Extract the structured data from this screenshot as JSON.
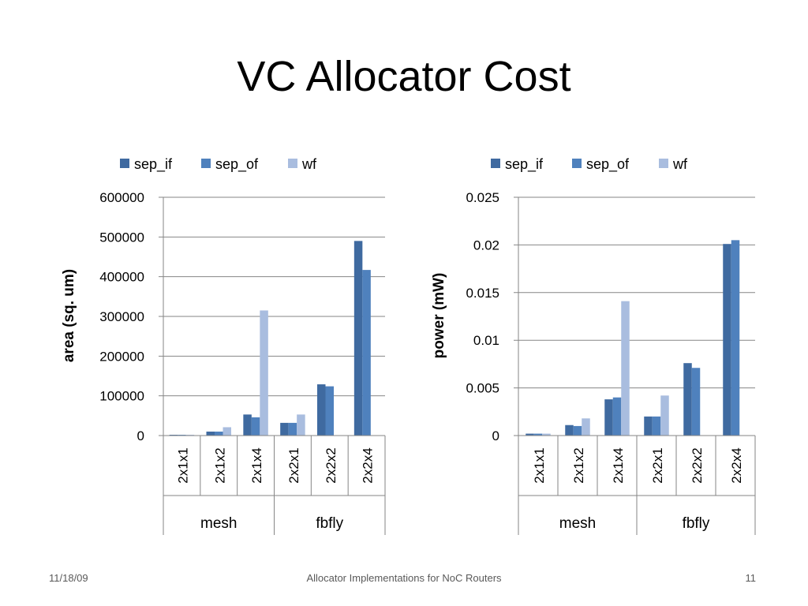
{
  "slide": {
    "title": "VC Allocator Cost",
    "footer_date": "11/18/09",
    "footer_center": "Allocator Implementations for NoC Routers",
    "page_number": "11"
  },
  "colors": {
    "sep_if": "#3f6aa0",
    "sep_of": "#4f81bd",
    "wf": "#a9bddf",
    "grid": "#868686",
    "axis": "#868686"
  },
  "chart_data": [
    {
      "type": "bar",
      "title": "",
      "xlabel": "",
      "ylabel": "area (sq. um)",
      "ylim": [
        0,
        600000
      ],
      "yticks": [
        "600000",
        "500000",
        "400000",
        "300000",
        "200000",
        "100000",
        "0"
      ],
      "legend_position": "top",
      "categories": [
        "2x1x1",
        "2x1x2",
        "2x1x4",
        "2x2x1",
        "2x2x2",
        "2x2x4"
      ],
      "groups": [
        {
          "label": "mesh",
          "span": 3
        },
        {
          "label": "fbfly",
          "span": 3
        }
      ],
      "series": [
        {
          "name": "sep_if",
          "values": [
            2000,
            10000,
            53000,
            32000,
            129000,
            490000
          ]
        },
        {
          "name": "sep_of",
          "values": [
            2000,
            10000,
            46000,
            32000,
            124000,
            417000
          ]
        },
        {
          "name": "wf",
          "values": [
            2000,
            21000,
            315000,
            53000,
            0,
            0
          ]
        }
      ],
      "grid": true
    },
    {
      "type": "bar",
      "title": "",
      "xlabel": "",
      "ylabel": "power (mW)",
      "ylim": [
        0,
        0.025
      ],
      "yticks": [
        "0.025",
        "0.02",
        "0.015",
        "0.01",
        "0.005",
        "0"
      ],
      "legend_position": "top",
      "categories": [
        "2x1x1",
        "2x1x2",
        "2x1x4",
        "2x2x1",
        "2x2x2",
        "2x2x4"
      ],
      "groups": [
        {
          "label": "mesh",
          "span": 3
        },
        {
          "label": "fbfly",
          "span": 3
        }
      ],
      "series": [
        {
          "name": "sep_if",
          "values": [
            0.0002,
            0.0011,
            0.0038,
            0.002,
            0.0076,
            0.0201
          ]
        },
        {
          "name": "sep_of",
          "values": [
            0.0002,
            0.001,
            0.004,
            0.002,
            0.0071,
            0.0205
          ]
        },
        {
          "name": "wf",
          "values": [
            0.0002,
            0.0018,
            0.0141,
            0.0042,
            0,
            0
          ]
        }
      ],
      "grid": true
    }
  ]
}
